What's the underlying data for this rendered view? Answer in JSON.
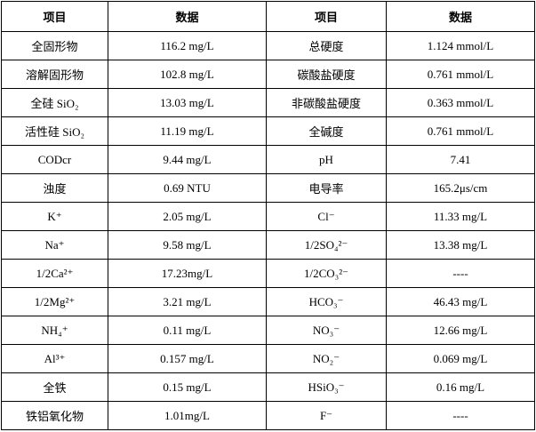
{
  "table": {
    "header": [
      "项目",
      "数据",
      "项目",
      "数据"
    ],
    "rows": [
      [
        "全固形物",
        "116.2 mg/L",
        "总硬度",
        "1.124 mmol/L"
      ],
      [
        "溶解固形物",
        "102.8 mg/L",
        "碳酸盐硬度",
        "0.761 mmol/L"
      ],
      [
        "全硅 SiO₂",
        "13.03 mg/L",
        "非碳酸盐硬度",
        "0.363 mmol/L"
      ],
      [
        "活性硅 SiO₂",
        "11.19 mg/L",
        "全碱度",
        "0.761 mmol/L"
      ],
      [
        "CODcr",
        "9.44 mg/L",
        "pH",
        "7.41"
      ],
      [
        "浊度",
        "0.69 NTU",
        "电导率",
        "165.2μs/cm"
      ],
      [
        "K⁺",
        "2.05 mg/L",
        "Cl⁻",
        "11.33 mg/L"
      ],
      [
        "Na⁺",
        "9.58 mg/L",
        "1/2SO₄²⁻",
        "13.38 mg/L"
      ],
      [
        "1/2Ca²⁺",
        "17.23mg/L",
        "1/2CO₃²⁻",
        "----"
      ],
      [
        "1/2Mg²⁺",
        "3.21 mg/L",
        "HCO₃⁻",
        "46.43 mg/L"
      ],
      [
        "NH₄⁺",
        "0.11 mg/L",
        "NO₃⁻",
        "12.66 mg/L"
      ],
      [
        "Al³⁺",
        "0.157 mg/L",
        "NO₂⁻",
        "0.069 mg/L"
      ],
      [
        "全铁",
        "0.15 mg/L",
        "HSiO₃⁻",
        "0.16 mg/L"
      ],
      [
        "铁铝氧化物",
        "1.01mg/L",
        "F⁻",
        "----"
      ]
    ]
  }
}
